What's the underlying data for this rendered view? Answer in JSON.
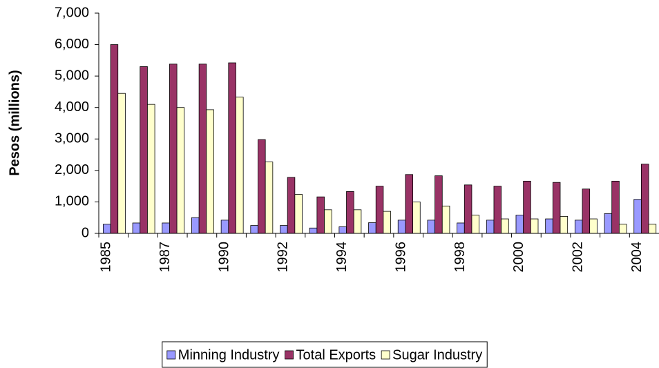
{
  "chart_data": {
    "type": "bar",
    "y_label": "Pesos (millions)",
    "categories": [
      "1985",
      null,
      "1987",
      null,
      "1990",
      null,
      "1992",
      null,
      "1994",
      null,
      "1996",
      null,
      "1998",
      null,
      "2000",
      null,
      "2002",
      null,
      "2004"
    ],
    "series": [
      {
        "name": "Minning Industry",
        "color": "#9999ff",
        "values": [
          290,
          330,
          330,
          500,
          420,
          250,
          250,
          170,
          210,
          340,
          420,
          420,
          330,
          420,
          580,
          460,
          420,
          630,
          1080
        ]
      },
      {
        "name": "Total Exports",
        "color": "#993366",
        "values": [
          6000,
          5300,
          5380,
          5380,
          5420,
          2980,
          1780,
          1160,
          1330,
          1500,
          1870,
          1830,
          1540,
          1500,
          1660,
          1620,
          1410,
          1660,
          2200
        ]
      },
      {
        "name": "Sugar Industry",
        "color": "#ffffcc",
        "values": [
          4450,
          4100,
          4000,
          3930,
          4330,
          2270,
          1240,
          750,
          750,
          700,
          1000,
          870,
          580,
          460,
          460,
          540,
          460,
          290,
          290
        ]
      }
    ],
    "ylim": [
      0,
      7000
    ],
    "yticks": [
      0,
      {
        "value": 1000,
        "label": "1,000"
      },
      {
        "value": 2000,
        "label": "2,000"
      },
      {
        "value": 3000,
        "label": "3,000"
      },
      {
        "value": 4000,
        "label": "4,000"
      },
      {
        "value": 5000,
        "label": "5,000"
      },
      {
        "value": 6000,
        "label": "6,000"
      },
      {
        "value": 7000,
        "label": "7,000"
      }
    ],
    "grid": false,
    "legend": "bottom"
  }
}
